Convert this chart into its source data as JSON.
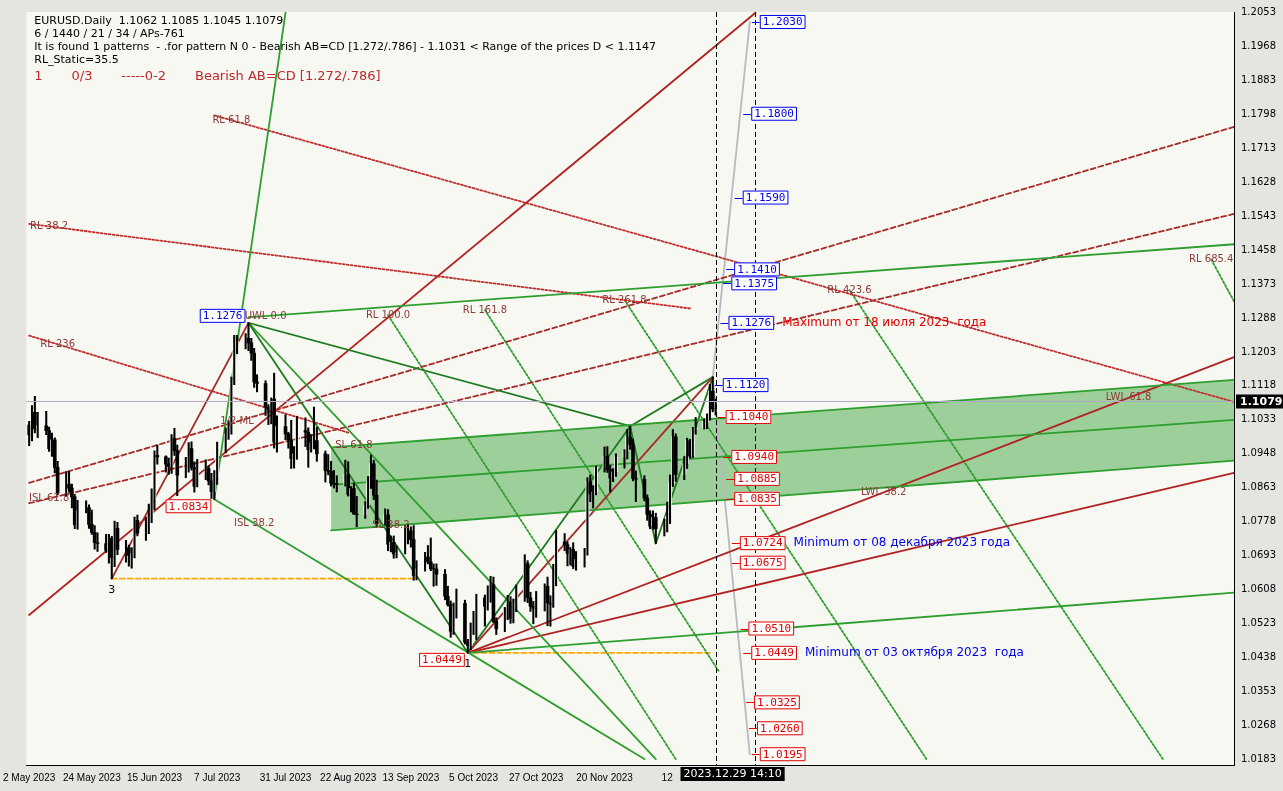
{
  "chart_data": {
    "type": "candlestick",
    "title": "EURUSD.Daily  1.1062 1.1085 1.1045 1.1079",
    "subtitle": "6 / 1440 / 21 / 34 / APs-761",
    "xlim": [
      "2023-05-01",
      "2024-06-28"
    ],
    "xticks": [
      {
        "value": "2023-05-02",
        "label": "2 May 2023"
      },
      {
        "value": "2023-05-24",
        "label": "24 May 2023"
      },
      {
        "value": "2023-06-15",
        "label": "15 Jun 2023"
      },
      {
        "value": "2023-07-07",
        "label": "7 Jul 2023"
      },
      {
        "value": "2023-07-31",
        "label": "31 Jul 2023"
      },
      {
        "value": "2023-08-22",
        "label": "22 Aug 2023"
      },
      {
        "value": "2023-09-13",
        "label": "13 Sep 2023"
      },
      {
        "value": "2023-10-05",
        "label": "5 Oct 2023"
      },
      {
        "value": "2023-10-27",
        "label": "27 Oct 2023"
      },
      {
        "value": "2023-11-20",
        "label": "20 Nov 2023"
      },
      {
        "value": "2023-12-12",
        "label": "12"
      }
    ],
    "ylim": [
      1.0168,
      1.2055
    ],
    "yticks": [
      1.0183,
      1.0268,
      1.0353,
      1.0438,
      1.0523,
      1.0608,
      1.0693,
      1.0778,
      1.0863,
      1.0948,
      1.1033,
      1.1118,
      1.1203,
      1.1288,
      1.1373,
      1.1458,
      1.1543,
      1.1628,
      1.1713,
      1.1798,
      1.1883,
      1.1968,
      1.2053
    ],
    "grid": false,
    "series": [
      {
        "x": [
          "2023-05-02",
          "2023-05-03",
          "2023-05-04",
          "2023-05-05",
          "2023-05-08",
          "2023-05-09",
          "2023-05-10",
          "2023-05-11",
          "2023-05-12",
          "2023-05-15",
          "2023-05-16",
          "2023-05-17",
          "2023-05-18",
          "2023-05-19",
          "2023-05-22",
          "2023-05-23",
          "2023-05-24",
          "2023-05-25",
          "2023-05-26",
          "2023-05-29",
          "2023-05-30",
          "2023-05-31",
          "2023-06-01",
          "2023-06-02",
          "2023-06-05",
          "2023-06-06",
          "2023-06-07",
          "2023-06-08",
          "2023-06-09",
          "2023-06-12",
          "2023-06-13",
          "2023-06-14",
          "2023-06-15",
          "2023-06-16",
          "2023-06-19",
          "2023-06-20",
          "2023-06-21",
          "2023-06-22",
          "2023-06-23",
          "2023-06-26",
          "2023-06-27",
          "2023-06-28",
          "2023-06-29",
          "2023-06-30",
          "2023-07-03",
          "2023-07-04",
          "2023-07-05",
          "2023-07-06",
          "2023-07-07",
          "2023-07-10",
          "2023-07-11",
          "2023-07-12",
          "2023-07-13",
          "2023-07-14",
          "2023-07-17",
          "2023-07-18",
          "2023-07-19",
          "2023-07-20",
          "2023-07-21",
          "2023-07-24",
          "2023-07-25",
          "2023-07-26",
          "2023-07-27",
          "2023-07-28",
          "2023-07-31",
          "2023-08-01",
          "2023-08-02",
          "2023-08-03",
          "2023-08-04",
          "2023-08-07",
          "2023-08-08",
          "2023-08-09",
          "2023-08-10",
          "2023-08-11",
          "2023-08-14",
          "2023-08-15",
          "2023-08-16",
          "2023-08-17",
          "2023-08-18",
          "2023-08-21",
          "2023-08-22",
          "2023-08-23",
          "2023-08-24",
          "2023-08-25",
          "2023-08-28",
          "2023-08-29",
          "2023-08-30",
          "2023-08-31",
          "2023-09-01",
          "2023-09-04",
          "2023-09-05",
          "2023-09-06",
          "2023-09-07",
          "2023-09-08",
          "2023-09-11",
          "2023-09-12",
          "2023-09-13",
          "2023-09-14",
          "2023-09-15",
          "2023-09-18",
          "2023-09-19",
          "2023-09-20",
          "2023-09-21",
          "2023-09-22",
          "2023-09-25",
          "2023-09-26",
          "2023-09-27",
          "2023-09-28",
          "2023-09-29",
          "2023-10-02",
          "2023-10-03",
          "2023-10-04",
          "2023-10-05",
          "2023-10-06",
          "2023-10-09",
          "2023-10-10",
          "2023-10-11",
          "2023-10-12",
          "2023-10-13",
          "2023-10-16",
          "2023-10-17",
          "2023-10-18",
          "2023-10-19",
          "2023-10-20",
          "2023-10-23",
          "2023-10-24",
          "2023-10-25",
          "2023-10-26",
          "2023-10-27",
          "2023-10-30",
          "2023-10-31",
          "2023-11-01",
          "2023-11-02",
          "2023-11-03",
          "2023-11-06",
          "2023-11-07",
          "2023-11-08",
          "2023-11-09",
          "2023-11-10",
          "2023-11-13",
          "2023-11-14",
          "2023-11-15",
          "2023-11-16",
          "2023-11-17",
          "2023-11-20",
          "2023-11-21",
          "2023-11-22",
          "2023-11-23",
          "2023-11-24",
          "2023-11-27",
          "2023-11-28",
          "2023-11-29",
          "2023-11-30",
          "2023-12-01",
          "2023-12-04",
          "2023-12-05",
          "2023-12-06",
          "2023-12-07",
          "2023-12-08",
          "2023-12-11",
          "2023-12-12",
          "2023-12-13",
          "2023-12-14",
          "2023-12-15",
          "2023-12-18",
          "2023-12-19",
          "2023-12-20",
          "2023-12-21",
          "2023-12-22",
          "2023-12-25",
          "2023-12-26",
          "2023-12-27",
          "2023-12-28",
          "2023-12-29"
        ],
        "ohlc": [
          [
            1.102,
            1.1029,
            1.0968,
            1.0995
          ],
          [
            1.0995,
            1.1069,
            1.098,
            1.1052
          ],
          [
            1.1052,
            1.1092,
            1.1,
            1.101
          ],
          [
            1.101,
            1.1052,
            1.0988,
            1.1018
          ],
          [
            1.1018,
            1.1054,
            1.0996,
            1.1006
          ],
          [
            1.1006,
            1.1015,
            1.0954,
            1.0961
          ],
          [
            1.0961,
            1.1,
            1.0941,
            1.0983
          ],
          [
            1.0983,
            1.0988,
            1.09,
            1.0914
          ],
          [
            1.0914,
            1.0929,
            1.0845,
            1.085
          ],
          [
            1.085,
            1.0903,
            1.0841,
            1.0872
          ],
          [
            1.0872,
            1.0904,
            1.0852,
            1.0862
          ],
          [
            1.0862,
            1.0872,
            1.0812,
            1.084
          ],
          [
            1.084,
            1.0846,
            1.076,
            1.077
          ],
          [
            1.077,
            1.0831,
            1.0759,
            1.0805
          ],
          [
            1.0805,
            1.083,
            1.08,
            1.0813
          ],
          [
            1.0813,
            1.082,
            1.0761,
            1.0771
          ],
          [
            1.0771,
            1.0807,
            1.0746,
            1.0751
          ],
          [
            1.0751,
            1.0768,
            1.0709,
            1.0725
          ],
          [
            1.0725,
            1.075,
            1.0703,
            1.0723
          ],
          [
            1.0723,
            1.0746,
            1.0701,
            1.0706
          ],
          [
            1.0706,
            1.0746,
            1.0674,
            1.0736
          ],
          [
            1.0736,
            1.0741,
            1.0635,
            1.0688
          ],
          [
            1.0688,
            1.0779,
            1.0665,
            1.0761
          ],
          [
            1.0761,
            1.0776,
            1.0695,
            1.0708
          ],
          [
            1.0708,
            1.0731,
            1.0676,
            1.0712
          ],
          [
            1.0712,
            1.0719,
            1.0666,
            1.0693
          ],
          [
            1.0693,
            1.0713,
            1.0661,
            1.0698
          ],
          [
            1.0698,
            1.0789,
            1.0687,
            1.0781
          ],
          [
            1.0781,
            1.0794,
            1.0742,
            1.0749
          ],
          [
            1.0749,
            1.0788,
            1.0731,
            1.0751
          ],
          [
            1.0751,
            1.0822,
            1.0748,
            1.0792
          ],
          [
            1.0792,
            1.086,
            1.0775,
            1.0831
          ],
          [
            1.0831,
            1.0955,
            1.0808,
            1.0944
          ],
          [
            1.0944,
            1.097,
            1.0922,
            1.094
          ],
          [
            1.094,
            1.0943,
            1.0902,
            1.0922
          ],
          [
            1.0922,
            1.0937,
            1.0896,
            1.0916
          ],
          [
            1.0916,
            1.0996,
            1.0899,
            1.0986
          ],
          [
            1.0986,
            1.1012,
            1.0944,
            1.0956
          ],
          [
            1.0956,
            1.097,
            1.0843,
            1.0894
          ],
          [
            1.0894,
            1.0939,
            1.0888,
            1.0907
          ],
          [
            1.0907,
            1.0976,
            1.0902,
            1.0961
          ],
          [
            1.0961,
            1.0978,
            1.0907,
            1.0913
          ],
          [
            1.0913,
            1.0928,
            1.0852,
            1.0867
          ],
          [
            1.0867,
            1.0934,
            1.0865,
            1.0909
          ],
          [
            1.0909,
            1.0933,
            1.0883,
            1.0911
          ],
          [
            1.0911,
            1.0918,
            1.087,
            1.088
          ],
          [
            1.088,
            1.0899,
            1.0836,
            1.0853
          ],
          [
            1.0853,
            1.0906,
            1.0834,
            1.0888
          ],
          [
            1.0888,
            1.0977,
            1.0871,
            1.0968
          ],
          [
            1.0968,
            1.1013,
            1.095,
            1.0997
          ],
          [
            1.0997,
            1.1031,
            1.0984,
            1.101
          ],
          [
            1.101,
            1.114,
            1.0997,
            1.1128
          ],
          [
            1.1128,
            1.1245,
            1.1121,
            1.1226
          ],
          [
            1.1226,
            1.1245,
            1.1199,
            1.1229
          ],
          [
            1.1229,
            1.1249,
            1.1211,
            1.1237
          ],
          [
            1.1237,
            1.1276,
            1.1206,
            1.1226
          ],
          [
            1.1226,
            1.1237,
            1.1182,
            1.12
          ],
          [
            1.12,
            1.1212,
            1.1114,
            1.1128
          ],
          [
            1.1128,
            1.1146,
            1.1103,
            1.1124
          ],
          [
            1.1124,
            1.1131,
            1.1044,
            1.1064
          ],
          [
            1.1064,
            1.1071,
            1.1021,
            1.1057
          ],
          [
            1.1057,
            1.1088,
            1.1023,
            1.1085
          ],
          [
            1.1085,
            1.115,
            1.0962,
            1.0977
          ],
          [
            1.0977,
            1.1043,
            1.0952,
            1.1016
          ],
          [
            1.1016,
            1.1046,
            1.0983,
            1.0998
          ],
          [
            1.0998,
            1.1002,
            1.0962,
            1.0983
          ],
          [
            1.0983,
            1.1032,
            1.0911,
            1.0936
          ],
          [
            1.0936,
            1.0966,
            1.0912,
            1.0948
          ],
          [
            1.0948,
            1.1042,
            1.0934,
            1.1006
          ],
          [
            1.1006,
            1.1038,
            1.0966,
            1.1002
          ],
          [
            1.1002,
            1.1013,
            1.0914,
            1.0958
          ],
          [
            1.0958,
            1.0996,
            1.0952,
            1.0975
          ],
          [
            1.0975,
            1.1065,
            1.096,
            1.0981
          ],
          [
            1.0981,
            1.1014,
            1.0929,
            1.0948
          ],
          [
            1.0948,
            1.0955,
            1.0877,
            1.0906
          ],
          [
            1.0906,
            1.0946,
            1.0895,
            1.0904
          ],
          [
            1.0904,
            1.0929,
            1.0867,
            1.0874
          ],
          [
            1.0874,
            1.0906,
            1.0862,
            1.0873
          ],
          [
            1.0873,
            1.0893,
            1.0852,
            1.0871
          ],
          [
            1.0871,
            1.0932,
            1.0867,
            1.0896
          ],
          [
            1.0896,
            1.0928,
            1.0842,
            1.0846
          ],
          [
            1.0846,
            1.0866,
            1.0802,
            1.0861
          ],
          [
            1.0861,
            1.0875,
            1.0796,
            1.0797
          ],
          [
            1.0797,
            1.0841,
            1.0765,
            1.0795
          ],
          [
            1.0795,
            1.0828,
            1.0786,
            1.0819
          ],
          [
            1.0819,
            1.0891,
            1.0811,
            1.0879
          ],
          [
            1.0879,
            1.0945,
            1.0861,
            1.0923
          ],
          [
            1.0923,
            1.0932,
            1.0833,
            1.0844
          ],
          [
            1.0844,
            1.0882,
            1.0766,
            1.0773
          ],
          [
            1.0773,
            1.081,
            1.0769,
            1.0795
          ],
          [
            1.0795,
            1.0808,
            1.0705,
            1.0721
          ],
          [
            1.0721,
            1.0742,
            1.0702,
            1.0726
          ],
          [
            1.0726,
            1.0742,
            1.0686,
            1.0697
          ],
          [
            1.0697,
            1.0717,
            1.0687,
            1.07
          ],
          [
            1.07,
            1.0768,
            1.0697,
            1.0751
          ],
          [
            1.0751,
            1.077,
            1.0722,
            1.0755
          ],
          [
            1.0755,
            1.0765,
            1.0714,
            1.0733
          ],
          [
            1.0733,
            1.0768,
            1.0631,
            1.0643
          ],
          [
            1.0643,
            1.068,
            1.0632,
            1.066
          ],
          [
            1.066,
            1.0701,
            1.0654,
            1.0689
          ],
          [
            1.0689,
            1.0718,
            1.0672,
            1.0677
          ],
          [
            1.0677,
            1.0737,
            1.0655,
            1.066
          ],
          [
            1.066,
            1.0672,
            1.0616,
            1.0659
          ],
          [
            1.0659,
            1.0672,
            1.0618,
            1.0646
          ],
          [
            1.0646,
            1.0658,
            1.0582,
            1.0591
          ],
          [
            1.0591,
            1.0616,
            1.0566,
            1.057
          ],
          [
            1.057,
            1.0579,
            1.0488,
            1.0503
          ],
          [
            1.0503,
            1.0574,
            1.0495,
            1.0566
          ],
          [
            1.0566,
            1.0609,
            1.0536,
            1.0573
          ],
          [
            1.0573,
            1.0581,
            1.0471,
            1.0476
          ],
          [
            1.0476,
            1.0483,
            1.0449,
            1.0467
          ],
          [
            1.0467,
            1.0524,
            1.0457,
            1.0504
          ],
          [
            1.0504,
            1.0553,
            1.0495,
            1.0549
          ],
          [
            1.0549,
            1.0596,
            1.0482,
            1.0587
          ],
          [
            1.0587,
            1.0594,
            1.0516,
            1.0566
          ],
          [
            1.0566,
            1.0617,
            1.0556,
            1.0605
          ],
          [
            1.0605,
            1.0641,
            1.0576,
            1.062
          ],
          [
            1.062,
            1.0639,
            1.0525,
            1.0528
          ],
          [
            1.0528,
            1.0537,
            1.0495,
            1.0509
          ],
          [
            1.0509,
            1.0563,
            1.0502,
            1.0558
          ],
          [
            1.0558,
            1.0593,
            1.0532,
            1.0576
          ],
          [
            1.0576,
            1.059,
            1.0523,
            1.0535
          ],
          [
            1.0535,
            1.0584,
            1.0524,
            1.0576
          ],
          [
            1.0576,
            1.0619,
            1.0552,
            1.0594
          ],
          [
            1.0594,
            1.0695,
            1.0578,
            1.0673
          ],
          [
            1.0673,
            1.068,
            1.0575,
            1.0587
          ],
          [
            1.0587,
            1.0601,
            1.0553,
            1.0566
          ],
          [
            1.0566,
            1.0578,
            1.0522,
            1.0561
          ],
          [
            1.0561,
            1.0603,
            1.0538,
            1.0566
          ],
          [
            1.0566,
            1.0622,
            1.0554,
            1.0616
          ],
          [
            1.0616,
            1.0639,
            1.0517,
            1.0574
          ],
          [
            1.0574,
            1.0592,
            1.0516,
            1.0571
          ],
          [
            1.0571,
            1.0671,
            1.0563,
            1.062
          ],
          [
            1.062,
            1.0756,
            1.0617,
            1.0727
          ],
          [
            1.0727,
            1.0748,
            1.0705,
            1.072
          ],
          [
            1.072,
            1.0727,
            1.0667,
            1.0698
          ],
          [
            1.0698,
            1.0713,
            1.0669,
            1.0708
          ],
          [
            1.0708,
            1.0725,
            1.066,
            1.0666
          ],
          [
            1.0666,
            1.0703,
            1.0656,
            1.0683
          ],
          [
            1.0683,
            1.0711,
            1.0664,
            1.07
          ],
          [
            1.07,
            1.0888,
            1.0694,
            1.0878
          ],
          [
            1.0878,
            1.0895,
            1.0828,
            1.0847
          ],
          [
            1.0847,
            1.0868,
            1.0812,
            1.0852
          ],
          [
            1.0852,
            1.0917,
            1.0845,
            1.0913
          ],
          [
            1.0913,
            1.0965,
            1.0902,
            1.0942
          ],
          [
            1.0942,
            1.0966,
            1.0901,
            1.0908
          ],
          [
            1.0908,
            1.0919,
            1.0852,
            1.0887
          ],
          [
            1.0887,
            1.0911,
            1.0878,
            1.0903
          ],
          [
            1.0903,
            1.0948,
            1.0891,
            1.094
          ],
          [
            1.094,
            1.0958,
            1.0912,
            1.0953
          ],
          [
            1.0953,
            1.1009,
            1.0935,
            1.099
          ],
          [
            1.099,
            1.1017,
            1.0959,
            1.0971
          ],
          [
            1.0971,
            1.0985,
            1.088,
            1.0886
          ],
          [
            1.0886,
            1.0905,
            1.0828,
            1.0884
          ],
          [
            1.0884,
            1.0893,
            1.083,
            1.0837
          ],
          [
            1.0837,
            1.0845,
            1.0781,
            1.0796
          ],
          [
            1.0796,
            1.0805,
            1.076,
            1.0766
          ],
          [
            1.0766,
            1.0805,
            1.0758,
            1.0788
          ],
          [
            1.0788,
            1.0799,
            1.0723,
            1.076
          ],
          [
            1.076,
            1.0784,
            1.0742,
            1.0762
          ],
          [
            1.0762,
            1.0827,
            1.0752,
            1.0792
          ],
          [
            1.0792,
            1.0895,
            1.0773,
            1.0875
          ],
          [
            1.0875,
            1.1009,
            1.0866,
            1.0991
          ],
          [
            1.0991,
            1.0998,
            1.0879,
            1.0896
          ],
          [
            1.0896,
            1.0941,
            1.0883,
            1.0923
          ],
          [
            1.0924,
            1.0987,
            1.0911,
            1.0981
          ],
          [
            1.0981,
            1.0984,
            1.0937,
            1.0942
          ],
          [
            1.0942,
            1.1014,
            1.0938,
            1.101
          ],
          [
            1.101,
            1.1039,
            1.0997,
            1.1012
          ],
          [
            1.1012,
            1.1036,
            1.101,
            1.1028
          ],
          [
            1.1028,
            1.1048,
            1.1011,
            1.1042
          ],
          [
            1.1042,
            1.1122,
            1.1032,
            1.1105
          ],
          [
            1.1105,
            1.114,
            1.1053,
            1.106
          ],
          [
            1.1062,
            1.1085,
            1.1045,
            1.1079
          ]
        ]
      },
      {
        "type": "line",
        "color": "#2e9e2e",
        "x": [
          "2023-08-16",
          "2024-06-28"
        ],
        "values": [
          1.087,
          1.1033
        ],
        "lower": [
          1.0756,
          1.0931
        ],
        "upper": [
          1.0964,
          1.1133
        ]
      },
      {
        "type": "line",
        "color": "#2e9e2e",
        "x": [
          "2023-08-16",
          "2024-06-28"
        ],
        "values": [
          1.0756,
          1.0931
        ]
      },
      {
        "type": "line",
        "color": "#2e9e2e",
        "x": [
          "2023-08-16",
          "2024-06-28"
        ],
        "values": [
          1.0964,
          1.1133
        ]
      },
      {
        "type": "line",
        "color": "#a52a2a",
        "x": [
          "2023-05-31",
          "2023-07-18"
        ],
        "values": [
          1.0635,
          1.1276
        ]
      },
      {
        "type": "line",
        "color": "#a52a2a",
        "x": [
          "2023-10-03",
          "2023-12-28"
        ],
        "values": [
          1.0449,
          1.114
        ]
      },
      {
        "type": "line",
        "color": "#1f7a1f",
        "x": [
          "2023-07-18",
          "2023-10-03",
          "2023-11-29",
          "2023-12-08",
          "2023-12-28"
        ],
        "values": [
          1.1276,
          1.0449,
          1.1017,
          1.0723,
          1.114
        ]
      },
      {
        "type": "line",
        "color": "#1f7a1f",
        "x": [
          "2023-07-18",
          "2023-11-29",
          "2023-12-28"
        ],
        "values": [
          1.1276,
          1.1017,
          1.114
        ]
      },
      {
        "type": "line",
        "color": "#2e9e2e",
        "x": [
          "2023-07-06",
          "2023-07-31"
        ],
        "values": [
          1.0834,
          1.2053
        ]
      },
      {
        "type": "line",
        "color": "#2e9e2e",
        "x": [
          "2023-07-18",
          "2024-06-28"
        ],
        "values": [
          1.129,
          1.1473
        ]
      },
      {
        "type": "line",
        "color": "#2e9e2e",
        "x": [
          "2023-07-18",
          "2023-12-08"
        ],
        "values": [
          1.1276,
          1.0183
        ]
      },
      {
        "type": "line",
        "color": "#2e9e2e",
        "x": [
          "2023-07-06",
          "2023-12-04"
        ],
        "values": [
          1.0834,
          1.0183
        ]
      },
      {
        "type": "line",
        "color": "#2e9e2e",
        "x": [
          "2023-10-03",
          "2024-06-28"
        ],
        "values": [
          1.0449,
          1.06
        ]
      },
      {
        "type": "line",
        "color": "#b22222",
        "x": [
          "2023-05-02",
          "2024-01-12"
        ],
        "values": [
          1.0544,
          1.2053
        ]
      },
      {
        "type": "line",
        "color": "#b22222",
        "x": [
          "2023-10-03",
          "2024-06-28"
        ],
        "values": [
          1.0449,
          1.09
        ]
      },
      {
        "type": "line",
        "color": "#b22222",
        "x": [
          "2023-10-03",
          "2024-06-28"
        ],
        "values": [
          1.0449,
          1.119
        ]
      },
      {
        "type": "line",
        "color": "#c03030",
        "line_style": "dotted",
        "x": [
          "2023-05-02",
          "2023-12-20"
        ],
        "values": [
          1.1524,
          1.1312
        ]
      },
      {
        "type": "line",
        "color": "#c03030",
        "line_style": "dotted",
        "x": [
          "2023-07-06",
          "2024-06-28"
        ],
        "values": [
          1.1796,
          1.1078
        ]
      },
      {
        "type": "line",
        "color": "#c03030",
        "line_style": "dotted",
        "x": [
          "2023-05-02",
          "2023-08-22"
        ],
        "values": [
          1.1244,
          1.1001
        ]
      },
      {
        "type": "line",
        "color": "#a52a2a",
        "line_style": "dashed",
        "x": [
          "2023-05-02",
          "2024-06-28"
        ],
        "values": [
          1.0875,
          1.1767
        ]
      },
      {
        "type": "line",
        "color": "#a52a2a",
        "line_style": "dashed",
        "x": [
          "2023-05-02",
          "2024-06-28"
        ],
        "values": [
          1.0824,
          1.1549
        ]
      },
      {
        "type": "line",
        "color": "#2e9e2e",
        "line_style": "dotted",
        "x": [
          "2023-09-05",
          "2023-12-15"
        ],
        "values": [
          1.1295,
          1.0183
        ]
      },
      {
        "type": "line",
        "color": "#2e9e2e",
        "line_style": "dotted",
        "x": [
          "2023-10-09",
          "2023-12-30"
        ],
        "values": [
          1.1308,
          1.0404
        ]
      },
      {
        "type": "line",
        "color": "#2e9e2e",
        "line_style": "dotted",
        "x": [
          "2023-11-27",
          "2024-03-12"
        ],
        "values": [
          1.1333,
          1.0183
        ]
      },
      {
        "type": "line",
        "color": "#2e9e2e",
        "line_style": "dotted",
        "x": [
          "2024-02-14",
          "2024-06-03"
        ],
        "values": [
          1.1358,
          1.0183
        ]
      },
      {
        "type": "line",
        "color": "#2e9e2e",
        "line_style": "dotted",
        "x": [
          "2024-06-20",
          "2024-06-28"
        ],
        "values": [
          1.1435,
          1.133
        ]
      },
      {
        "type": "line",
        "color": "#b8b8c0",
        "x": [
          "2024-01-10",
          "2023-12-28",
          "2024-01-10"
        ],
        "values": [
          1.203,
          1.114,
          1.0195
        ]
      },
      {
        "type": "line",
        "color": "#ffa500",
        "line_style": "dashed",
        "x": [
          "2023-05-31",
          "2023-09-14"
        ],
        "values": [
          1.0635,
          1.0635
        ]
      },
      {
        "type": "line",
        "color": "#ffa500",
        "line_style": "dashed",
        "x": [
          "2023-10-05",
          "2023-12-27"
        ],
        "values": [
          1.0449,
          1.0449
        ]
      }
    ],
    "ref_lines": [
      {
        "axis": "y",
        "value": 1.1079,
        "label": "1.1079",
        "color": "#b4a8c8"
      },
      {
        "axis": "x",
        "value": "2023-12-29",
        "label": "2023.12.29 14:10",
        "color": "#000000",
        "line_style": "dashed"
      },
      {
        "axis": "x",
        "value": "2024-01-12",
        "color": "#000000",
        "line_style": "dashed"
      }
    ],
    "annotations": [
      "It is found 1 patterns  - .for pattern N 0 - Bearish AB=CD [1.272/.786] - 1.1031 < Range of the prices D < 1.1147",
      "RL_Static=35.5",
      "1       0/3       -----0-2       Bearish AB=CD [1.272/.786]",
      {
        "text": "1.1276",
        "x": "2023-07-18",
        "y": 1.1276
      },
      {
        "text": "1.0834",
        "x": "2023-07-06",
        "y": 1.0834
      },
      {
        "text": "1.0449",
        "x": "2023-10-03",
        "y": 1.0449
      },
      {
        "text": "1.2030",
        "x": "2024-01-10",
        "y": 1.203
      },
      {
        "text": "1.1800",
        "x": "2024-01-07",
        "y": 1.18
      },
      {
        "text": "1.1590",
        "x": "2024-01-04",
        "y": 1.159
      },
      {
        "text": "1.1410",
        "x": "2024-01-01",
        "y": 1.141
      },
      {
        "text": "1.1375",
        "x": "2023-12-31",
        "y": 1.1375
      },
      {
        "text": "1.1276",
        "x": "2023-12-30",
        "y": 1.1276
      },
      "Maximum от 18 июля 2023  года",
      {
        "text": "1.1120",
        "x": "2023-12-28",
        "y": 1.112
      },
      {
        "text": "1.1040",
        "x": "2023-12-29",
        "y": 1.104
      },
      {
        "text": "1.0940",
        "x": "2023-12-31",
        "y": 1.094
      },
      {
        "text": "1.0885",
        "x": "2024-01-01",
        "y": 1.0885
      },
      {
        "text": "1.0835",
        "x": "2024-01-01",
        "y": 1.0835
      },
      {
        "text": "1.0724",
        "x": "2024-01-03",
        "y": 1.0724
      },
      "Minimum от 08 декабря 2023 года",
      {
        "text": "1.0675",
        "x": "2024-01-03",
        "y": 1.0675
      },
      {
        "text": "1.0510",
        "x": "2024-01-06",
        "y": 1.051
      },
      {
        "text": "1.0449",
        "x": "2024-01-07",
        "y": 1.0449
      },
      "Minimum от 03 октября 2023  года",
      {
        "text": "1.0325",
        "x": "2024-01-08",
        "y": 1.0325
      },
      {
        "text": "1.0260",
        "x": "2024-01-09",
        "y": 1.026
      },
      {
        "text": "1.0195",
        "x": "2024-01-10",
        "y": 1.0195
      },
      {
        "text": "3",
        "x": "2023-05-31",
        "y": 1.0635
      },
      {
        "text": "1",
        "x": "2023-10-03",
        "y": 1.0449
      },
      {
        "text": "RL 236",
        "x": "2023-05-12",
        "y": 1.1222
      },
      {
        "text": "RL 38.2",
        "x": "2023-05-09",
        "y": 1.1518
      },
      {
        "text": "RL 61.8",
        "x": "2023-07-12",
        "y": 1.1784
      },
      {
        "text": "UWL 0.0",
        "x": "2023-07-24",
        "y": 1.1293
      },
      {
        "text": "1/2 ML",
        "x": "2023-07-14",
        "y": 1.1029
      },
      {
        "text": "ISL 61.8",
        "x": "2023-05-09",
        "y": 1.0836
      },
      {
        "text": "ISL 38.2",
        "x": "2023-07-20",
        "y": 1.0774
      },
      {
        "text": "SL 61.8",
        "x": "2023-08-24",
        "y": 1.0968
      },
      {
        "text": "SL 38.2",
        "x": "2023-09-06",
        "y": 1.0768
      },
      {
        "text": "RL 100.0",
        "x": "2023-09-05",
        "y": 1.1295
      },
      {
        "text": "RL 161.8",
        "x": "2023-10-09",
        "y": 1.1308
      },
      {
        "text": "RL 261.8",
        "x": "2023-11-27",
        "y": 1.1333
      },
      {
        "text": "RL 423.6",
        "x": "2024-02-14",
        "y": 1.1358
      },
      {
        "text": "RL 685.4",
        "x": "2024-06-20",
        "y": 1.1435
      },
      {
        "text": "LWL 38.2",
        "x": "2024-02-26",
        "y": 1.0851
      },
      {
        "text": "LWL 61.8",
        "x": "2024-05-22",
        "y": 1.1088
      }
    ]
  }
}
